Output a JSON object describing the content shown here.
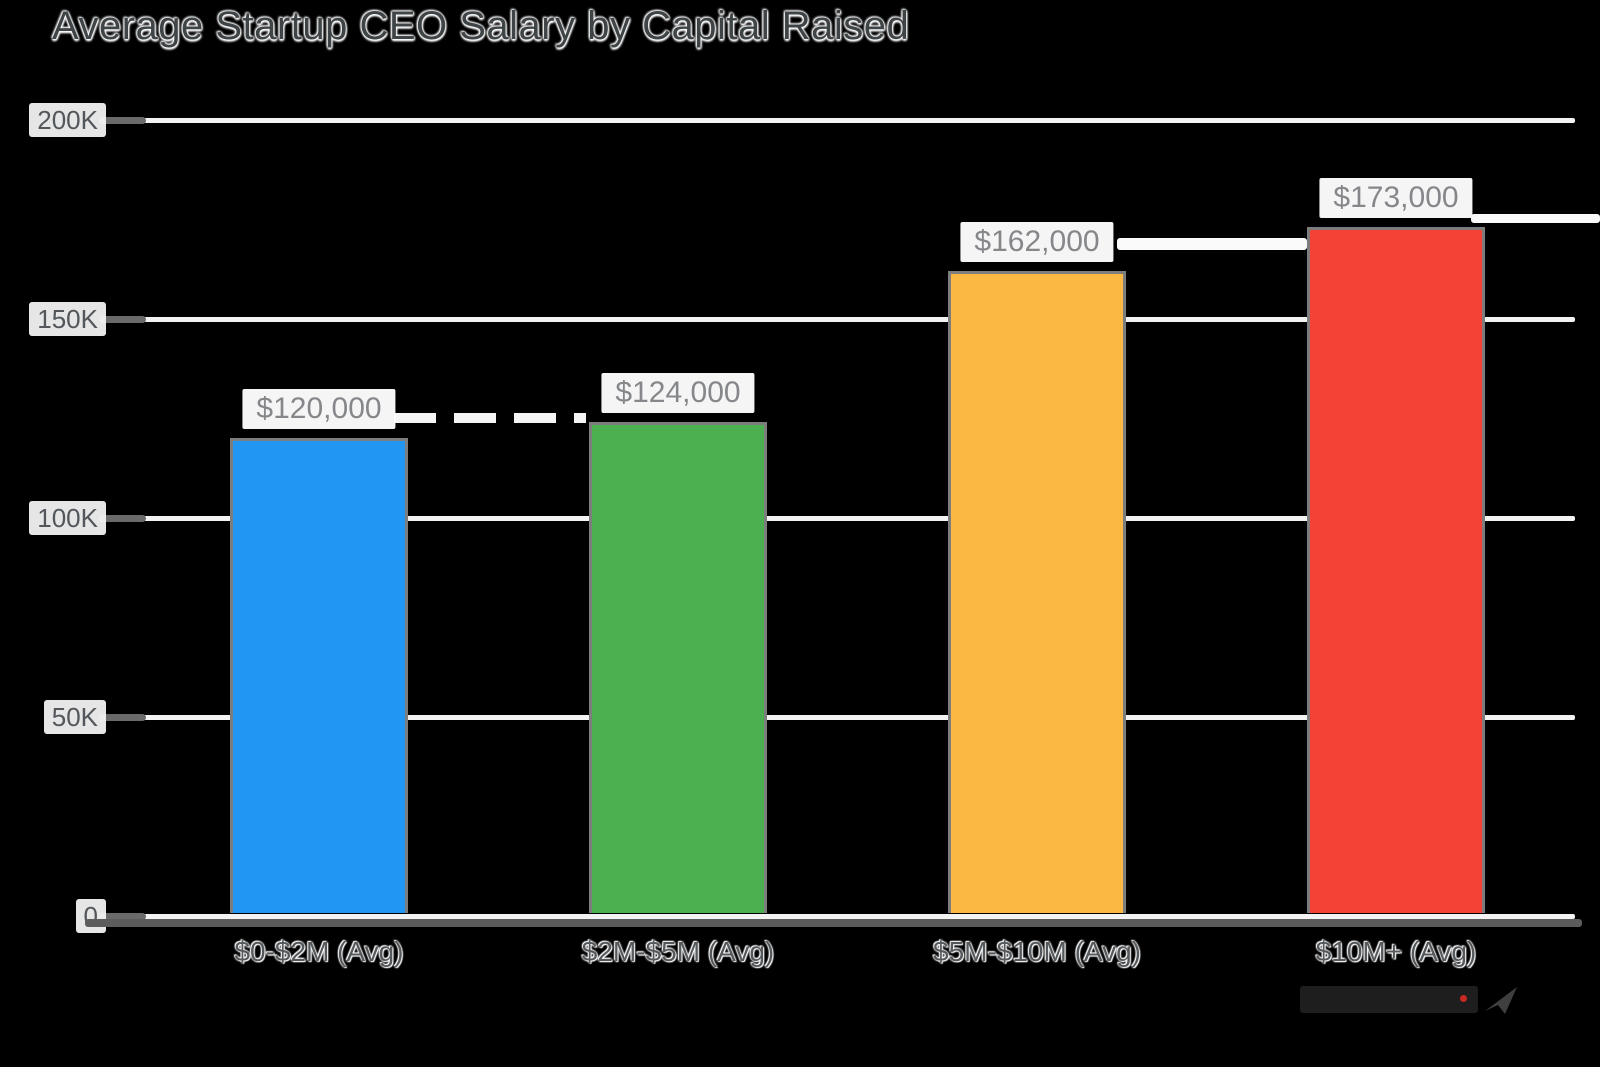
{
  "page": {
    "background": "#000000"
  },
  "chart_data": {
    "type": "bar",
    "title": "Average Startup CEO Salary by Capital Raised",
    "categories": [
      "$0-$2M (Avg)",
      "$2M-$5M (Avg)",
      "$5M-$10M (Avg)",
      "$10M+  (Avg)"
    ],
    "values": [
      120000,
      124000,
      162000,
      173000
    ],
    "value_labels": [
      "$120,000",
      "$124,000",
      "$162,000",
      "$173,000"
    ],
    "bar_colors": [
      "#2196f3",
      "#4caf50",
      "#fbb843",
      "#f44336"
    ],
    "xlabel": "",
    "ylabel": "",
    "ylim": [
      0,
      200000
    ],
    "yticks": [
      {
        "label": "200K",
        "value": 200000
      },
      {
        "label": "150K",
        "value": 150000
      },
      {
        "label": "100K",
        "value": 100000
      },
      {
        "label": "50K",
        "value": 50000
      },
      {
        "label": "0",
        "value": 0
      }
    ],
    "grid": "horizontal-on",
    "legend": "none",
    "colors": {
      "gridline": "#f3f3f3",
      "axis_line": "#5c5c5c",
      "tick_mark": "#6a6a6a",
      "title_text": "#3f4447",
      "axis_label_text": "#55595c",
      "value_label_text": "#85878a",
      "value_label_bg": "#ffffff",
      "bar_border": "#7d7d7d"
    }
  },
  "watermark": {
    "icon": "paper-plane-icon",
    "bar_color": "#1e1e1e",
    "accent_dot_color": "#c62a22",
    "icon_color": "#3f3f3f"
  }
}
